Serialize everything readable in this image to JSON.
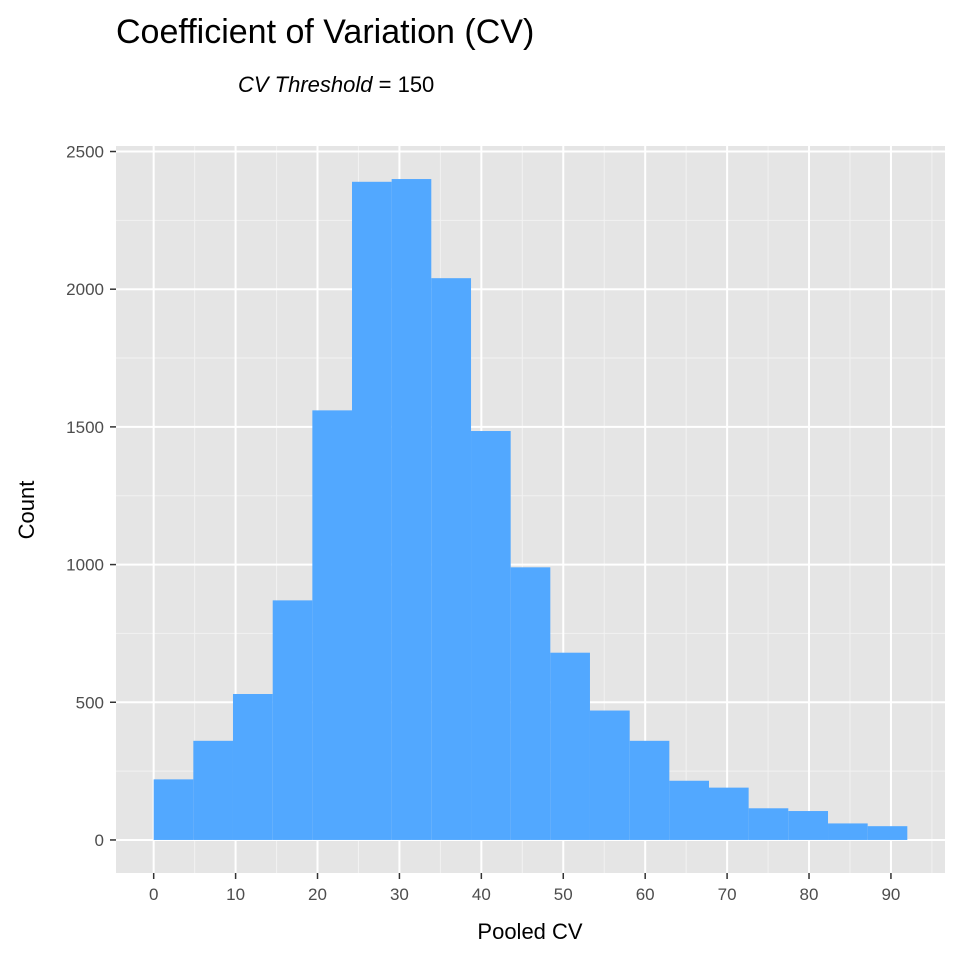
{
  "chart_data": {
    "type": "bar",
    "title": "Coefficient of Variation (CV)",
    "subtitle": {
      "italic_part": "CV Threshold",
      "rest": " = 150"
    },
    "xlabel": "Pooled CV",
    "ylabel": "Count",
    "xlim": [
      -4.6,
      96.6
    ],
    "ylim": [
      -120,
      2520
    ],
    "x_ticks": [
      0,
      10,
      20,
      30,
      40,
      50,
      60,
      70,
      80,
      90
    ],
    "y_ticks": [
      0,
      500,
      1000,
      1500,
      2000,
      2500
    ],
    "grid": true,
    "bin_edges": [
      0,
      4.84,
      9.68,
      14.53,
      19.37,
      24.21,
      29.05,
      33.89,
      38.74,
      43.58,
      48.42,
      53.26,
      58.11,
      62.95,
      67.79,
      72.63,
      77.47,
      82.32,
      87.16,
      92.0
    ],
    "values": [
      220,
      360,
      530,
      870,
      1560,
      2390,
      2400,
      2040,
      1485,
      990,
      680,
      470,
      360,
      215,
      190,
      115,
      105,
      60,
      50
    ],
    "colors": {
      "bar": "#52a8ff",
      "panel": "#e5e5e5",
      "grid_major": "#ffffff",
      "grid_minor": "#f2f2f2",
      "tick_label": "#4d4d4d",
      "tick_mark": "#333333"
    }
  }
}
